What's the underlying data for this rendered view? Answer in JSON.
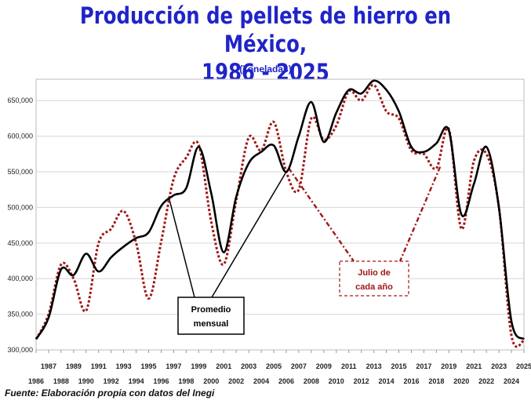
{
  "chart_data": {
    "type": "line",
    "title": "Producción de pellets de hierro en México,",
    "title_line2": "1986 - 2025",
    "subtitle": "(Toneladas)",
    "source": "Fuente: Elaboración propia con datos del Inegi",
    "ylim": [
      300000,
      680000
    ],
    "xlim": [
      1986,
      2025
    ],
    "y_ticks": [
      300000,
      350000,
      400000,
      450000,
      500000,
      550000,
      600000,
      650000
    ],
    "y_tick_labels": [
      "300,000",
      "350,000",
      "400,000",
      "450,000",
      "500,000",
      "550,000",
      "600,000",
      "650,000"
    ],
    "x_ticks_upper": [
      "1987",
      "1989",
      "1991",
      "1993",
      "1995",
      "1997",
      "1999",
      "2001",
      "2003",
      "2005",
      "2007",
      "2009",
      "2011",
      "2013",
      "2015",
      "2017",
      "2019",
      "2021",
      "2023",
      "2025"
    ],
    "x_ticks_lower": [
      "1986",
      "1988",
      "1990",
      "1992",
      "1994",
      "1996",
      "1998",
      "2000",
      "2002",
      "2004",
      "2006",
      "2008",
      "2010",
      "2012",
      "2014",
      "2016",
      "2018",
      "2020",
      "2022",
      "2024"
    ],
    "grid": true,
    "series": [
      {
        "name": "Promedio mensual",
        "color": "#000000",
        "style": "solid",
        "x": [
          1986,
          1987,
          1988,
          1989,
          1990,
          1991,
          1992,
          1993,
          1994,
          1995,
          1996,
          1997,
          1998,
          1999,
          2000,
          2001,
          2002,
          2003,
          2004,
          2005,
          2006,
          2007,
          2008,
          2009,
          2010,
          2011,
          2012,
          2013,
          2014,
          2015,
          2016,
          2017,
          2018,
          2019,
          2020,
          2021,
          2022,
          2023,
          2024,
          2025
        ],
        "values": [
          315000,
          345000,
          413000,
          405000,
          435000,
          410000,
          430000,
          445000,
          457000,
          465000,
          502000,
          517000,
          527000,
          585000,
          520000,
          437000,
          515000,
          562000,
          578000,
          587000,
          550000,
          600000,
          648000,
          592000,
          633000,
          665000,
          660000,
          678000,
          665000,
          635000,
          585000,
          578000,
          590000,
          608000,
          490000,
          533000,
          585000,
          500000,
          340000,
          315000
        ]
      },
      {
        "name": "Julio de cada año",
        "color": "#a01818",
        "style": "dotted",
        "x": [
          1986,
          1987,
          1988,
          1989,
          1990,
          1991,
          1992,
          1993,
          1994,
          1995,
          1996,
          1997,
          1998,
          1999,
          2000,
          2001,
          2002,
          2003,
          2004,
          2005,
          2006,
          2007,
          2008,
          2009,
          2010,
          2011,
          2012,
          2013,
          2014,
          2015,
          2016,
          2017,
          2018,
          2019,
          2020,
          2021,
          2022,
          2023,
          2024,
          2025
        ],
        "values": [
          315000,
          350000,
          420000,
          400000,
          355000,
          450000,
          470000,
          495000,
          450000,
          372000,
          452000,
          540000,
          570000,
          588000,
          480000,
          420000,
          510000,
          598000,
          580000,
          620000,
          550000,
          525000,
          625000,
          595000,
          615000,
          663000,
          650000,
          672000,
          635000,
          625000,
          580000,
          575000,
          555000,
          610000,
          470000,
          565000,
          575000,
          500000,
          320000,
          313000
        ]
      }
    ],
    "annotations": [
      {
        "label_line1": "Promedio",
        "label_line2": "mensual"
      },
      {
        "label_line1": "Julio de",
        "label_line2": "cada año"
      }
    ]
  }
}
